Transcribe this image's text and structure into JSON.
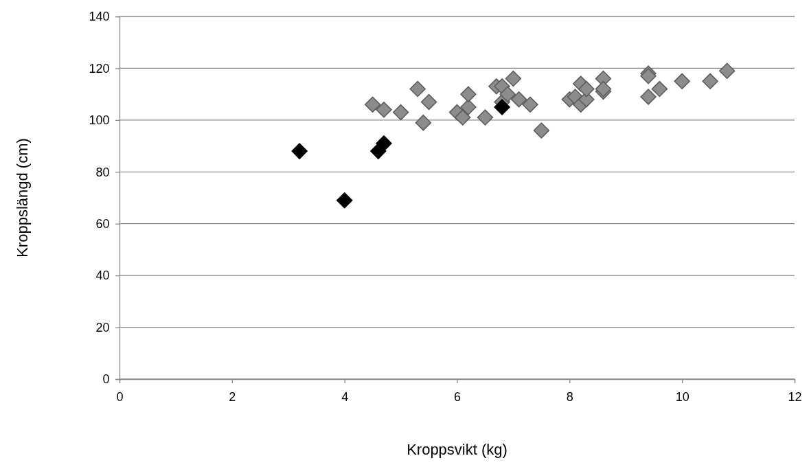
{
  "chart_data": {
    "type": "scatter",
    "xlabel": "Kroppsvikt (kg)",
    "ylabel": "Kroppslängd (cm)",
    "xlim": [
      0,
      12
    ],
    "xticks": [
      0,
      2,
      4,
      6,
      8,
      10,
      12
    ],
    "ylim": [
      0,
      140
    ],
    "yticks": [
      0,
      20,
      40,
      60,
      80,
      100,
      120,
      140
    ],
    "grid": "y",
    "marker": "diamond",
    "series": [
      {
        "color": "#8c8c8c",
        "x": [
          4.5,
          4.7,
          5.0,
          5.3,
          5.4,
          5.5,
          6.0,
          6.1,
          6.2,
          6.2,
          6.5,
          6.7,
          6.8,
          6.8,
          6.9,
          7.0,
          7.1,
          7.3,
          7.5,
          8.0,
          8.1,
          8.2,
          8.2,
          8.3,
          8.3,
          8.6,
          8.6,
          8.6,
          9.4,
          9.4,
          9.4,
          9.6,
          10.0,
          10.5,
          10.8
        ],
        "values": [
          106,
          104,
          103,
          112,
          99,
          107,
          103,
          101,
          105,
          110,
          101,
          113,
          113,
          107,
          110,
          116,
          108,
          106,
          96,
          108,
          109,
          106,
          114,
          108,
          112,
          111,
          116,
          112,
          118,
          117,
          109,
          112,
          115,
          115,
          119
        ]
      },
      {
        "color": "#000000",
        "x": [
          3.2,
          4.0,
          4.6,
          4.7,
          6.8
        ],
        "values": [
          88,
          69,
          88,
          91,
          105
        ]
      }
    ]
  }
}
